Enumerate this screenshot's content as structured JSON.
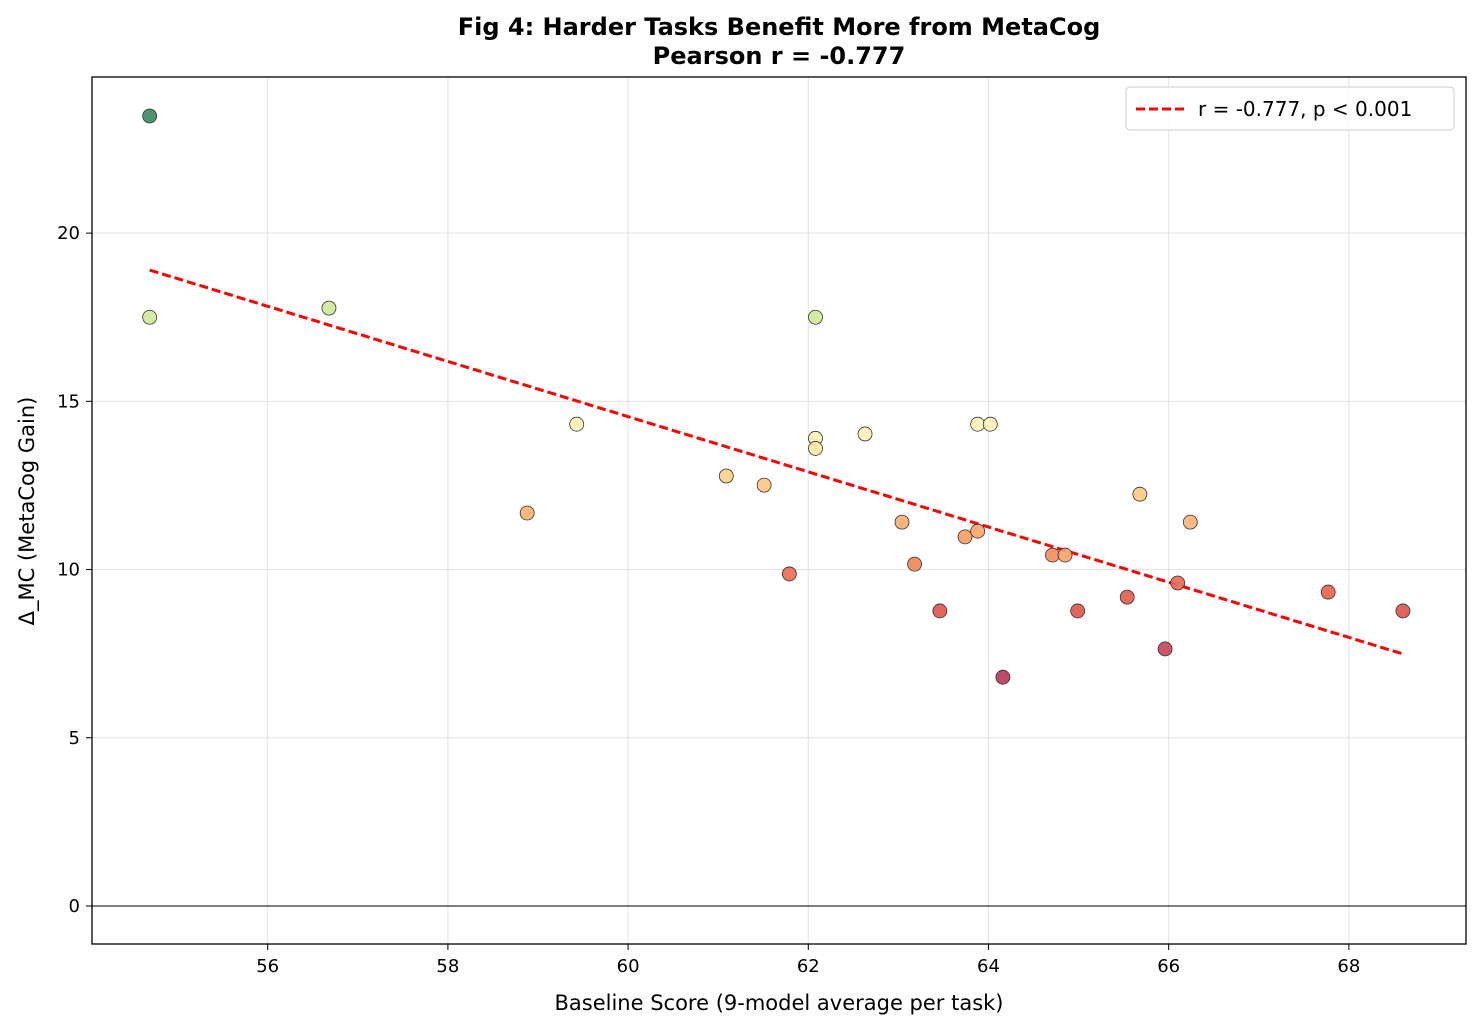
{
  "chart_data": {
    "type": "scatter",
    "title": "Fig 4: Harder Tasks Benefit More from MetaCog",
    "subtitle": "Pearson r = -0.777",
    "xlabel": "Baseline Score (9-model average per task)",
    "ylabel": "Δ_MC (MetaCog Gain)",
    "xlim": [
      54.05,
      69.3
    ],
    "ylim": [
      -1.13,
      24.64
    ],
    "xticks": [
      56,
      58,
      60,
      62,
      64,
      66,
      68
    ],
    "yticks": [
      0,
      5,
      10,
      15,
      20
    ],
    "grid": true,
    "zero_line": true,
    "legend": {
      "placement": "top-right",
      "entries": [
        "r = -0.777, p < 0.001"
      ]
    },
    "trend_line": {
      "x": [
        54.69,
        68.6
      ],
      "y": [
        18.9,
        7.49
      ],
      "color": "#ff0000",
      "style": "dashed"
    },
    "points": [
      {
        "x": 54.69,
        "y": 23.48,
        "color": "#3a8a5f"
      },
      {
        "x": 54.69,
        "y": 17.5,
        "color": "#cfe99a"
      },
      {
        "x": 56.68,
        "y": 17.77,
        "color": "#cfe99a"
      },
      {
        "x": 62.08,
        "y": 17.5,
        "color": "#cfe99a"
      },
      {
        "x": 59.43,
        "y": 14.32,
        "color": "#fff3b8"
      },
      {
        "x": 62.08,
        "y": 13.9,
        "color": "#fff3b8"
      },
      {
        "x": 62.08,
        "y": 13.6,
        "color": "#fee9a4"
      },
      {
        "x": 62.63,
        "y": 14.03,
        "color": "#fff3b8"
      },
      {
        "x": 63.88,
        "y": 14.32,
        "color": "#fff3b8"
      },
      {
        "x": 64.02,
        "y": 14.32,
        "color": "#fff3b8"
      },
      {
        "x": 58.88,
        "y": 11.68,
        "color": "#fbb071"
      },
      {
        "x": 61.09,
        "y": 12.78,
        "color": "#fdd08b"
      },
      {
        "x": 61.51,
        "y": 12.51,
        "color": "#fdc681"
      },
      {
        "x": 61.79,
        "y": 9.87,
        "color": "#ec6a4f"
      },
      {
        "x": 63.04,
        "y": 11.41,
        "color": "#fbac6f"
      },
      {
        "x": 63.18,
        "y": 10.16,
        "color": "#f08457"
      },
      {
        "x": 63.46,
        "y": 8.77,
        "color": "#de5449"
      },
      {
        "x": 63.74,
        "y": 10.97,
        "color": "#f89c62"
      },
      {
        "x": 63.88,
        "y": 11.14,
        "color": "#f9a467"
      },
      {
        "x": 64.16,
        "y": 6.8,
        "color": "#b73558"
      },
      {
        "x": 64.71,
        "y": 10.43,
        "color": "#f48c5b"
      },
      {
        "x": 64.85,
        "y": 10.43,
        "color": "#f8a264"
      },
      {
        "x": 64.99,
        "y": 8.77,
        "color": "#de5449"
      },
      {
        "x": 65.54,
        "y": 9.18,
        "color": "#e45b4b"
      },
      {
        "x": 65.68,
        "y": 12.24,
        "color": "#fdc982"
      },
      {
        "x": 65.96,
        "y": 7.64,
        "color": "#c8445a"
      },
      {
        "x": 66.1,
        "y": 9.6,
        "color": "#ea6850"
      },
      {
        "x": 66.24,
        "y": 11.41,
        "color": "#fbb475"
      },
      {
        "x": 67.77,
        "y": 9.33,
        "color": "#e7624d"
      },
      {
        "x": 68.6,
        "y": 8.77,
        "color": "#de5449"
      }
    ]
  }
}
